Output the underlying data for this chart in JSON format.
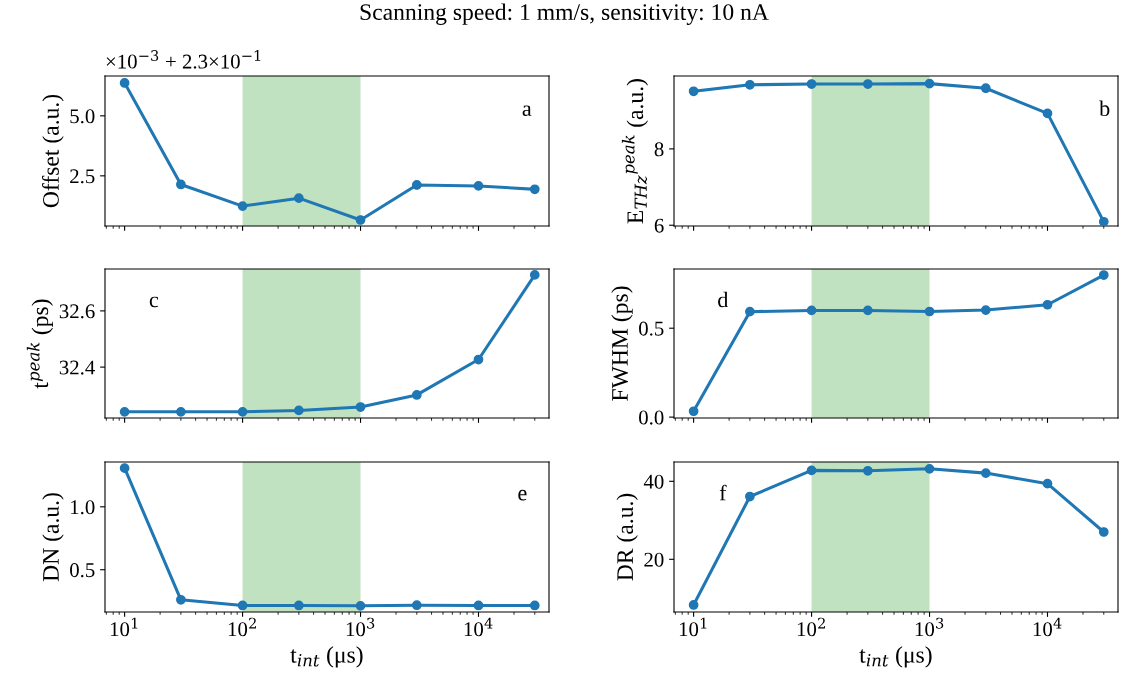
{
  "chart_data": [
    {
      "type": "line",
      "title": "Scanning speed: 1 mm/s, sensitivity: 10 nA",
      "ylabel": "Offset (a.u.)",
      "annotations": [
        "a",
        "×10$^{−3}$ + 2.3×10$^{−1}$"
      ],
      "x": [
        10,
        30,
        100,
        300,
        1000,
        3000,
        10000,
        30000
      ],
      "log": "x",
      "xlim": [
        6.82,
        39600
      ],
      "xticks": [
        10,
        100,
        1000,
        10000
      ],
      "ylim": [
        0.41,
        6.66
      ],
      "yticks": [
        2.5,
        {
          "value": 5,
          "label": "5.0"
        }
      ],
      "tick_labels": "y",
      "marker": "circle",
      "bands": [
        {
          "axis": "x",
          "from": 100,
          "to": 1000,
          "color": "#c0e2c0"
        }
      ],
      "series": [
        {
          "color": "#1f77b4",
          "values": [
            6.37,
            2.14,
            1.24,
            1.57,
            0.66,
            2.12,
            2.08,
            1.94
          ]
        }
      ]
    },
    {
      "type": "line",
      "ylabel": "E$_{THz}$$^{peak}$ (a.u.)",
      "annotations": [
        "b"
      ],
      "x": [
        10,
        30,
        100,
        300,
        1000,
        3000,
        10000,
        30000
      ],
      "log": "x",
      "xlim": [
        6.82,
        39600
      ],
      "xticks": [
        10,
        100,
        1000,
        10000
      ],
      "ylim": [
        5.98,
        9.91
      ],
      "yticks": [
        6,
        8
      ],
      "tick_labels": "y",
      "marker": "circle",
      "bands": [
        {
          "axis": "x",
          "from": 100,
          "to": 1000,
          "color": "#c0e2c0"
        }
      ],
      "series": [
        {
          "color": "#1f77b4",
          "values": [
            9.51,
            9.68,
            9.7,
            9.7,
            9.71,
            9.59,
            8.93,
            6.09
          ]
        }
      ]
    },
    {
      "type": "line",
      "ylabel": "t$^{peak}$ (ps)",
      "annotations": [
        "c"
      ],
      "x": [
        10,
        30,
        100,
        300,
        1000,
        3000,
        10000,
        30000
      ],
      "log": "x",
      "xlim": [
        6.82,
        39600
      ],
      "xticks": [
        10,
        100,
        1000,
        10000
      ],
      "ylim": [
        32.219,
        32.749
      ],
      "yticks": [
        32.4,
        32.6
      ],
      "tick_labels": "y",
      "marker": "circle",
      "bands": [
        {
          "axis": "x",
          "from": 100,
          "to": 1000,
          "color": "#c0e2c0"
        }
      ],
      "series": [
        {
          "color": "#1f77b4",
          "values": [
            32.241,
            32.241,
            32.241,
            32.246,
            32.258,
            32.301,
            32.427,
            32.728
          ]
        }
      ]
    },
    {
      "type": "line",
      "ylabel": "FWHM (ps)",
      "annotations": [
        "d"
      ],
      "x": [
        10,
        30,
        100,
        300,
        1000,
        3000,
        10000,
        30000
      ],
      "log": "x",
      "xlim": [
        6.82,
        39600
      ],
      "xticks": [
        10,
        100,
        1000,
        10000
      ],
      "ylim": [
        -0.005,
        0.833
      ],
      "yticks": [
        {
          "value": 0,
          "label": "0.0"
        },
        0.5
      ],
      "tick_labels": "y",
      "marker": "circle",
      "bands": [
        {
          "axis": "x",
          "from": 100,
          "to": 1000,
          "color": "#c0e2c0"
        }
      ],
      "series": [
        {
          "color": "#1f77b4",
          "values": [
            0.033,
            0.593,
            0.6,
            0.6,
            0.594,
            0.602,
            0.632,
            0.799
          ]
        }
      ]
    },
    {
      "type": "line",
      "xlabel": "t$_{int}$ (μs)",
      "ylabel": "DN (a.u.)",
      "annotations": [
        "e"
      ],
      "x": [
        10,
        30,
        100,
        300,
        1000,
        3000,
        10000,
        30000
      ],
      "log": "x",
      "xlim": [
        6.82,
        39600
      ],
      "xticks": [
        {
          "value": 10,
          "label": "10$^{1}$"
        },
        {
          "value": 100,
          "label": "10$^{2}$"
        },
        {
          "value": 1000,
          "label": "10$^{3}$"
        },
        {
          "value": 10000,
          "label": "10$^{4}$"
        }
      ],
      "ylim": [
        0.164,
        1.356
      ],
      "yticks": [
        0.5,
        {
          "value": 1,
          "label": "1.0"
        }
      ],
      "marker": "circle",
      "bands": [
        {
          "axis": "x",
          "from": 100,
          "to": 1000,
          "color": "#c0e2c0"
        }
      ],
      "series": [
        {
          "color": "#1f77b4",
          "values": [
            1.307,
            0.261,
            0.216,
            0.216,
            0.213,
            0.218,
            0.216,
            0.216
          ]
        }
      ]
    },
    {
      "type": "line",
      "xlabel": "t$_{int}$ (μs)",
      "ylabel": "DR (a.u.)",
      "annotations": [
        "f"
      ],
      "x": [
        10,
        30,
        100,
        300,
        1000,
        3000,
        10000,
        30000
      ],
      "log": "x",
      "xlim": [
        6.82,
        39600
      ],
      "xticks": [
        {
          "value": 10,
          "label": "10$^{1}$"
        },
        {
          "value": 100,
          "label": "10$^{2}$"
        },
        {
          "value": 1000,
          "label": "10$^{3}$"
        },
        {
          "value": 10000,
          "label": "10$^{4}$"
        }
      ],
      "ylim": [
        6.49,
        44.95
      ],
      "yticks": [
        20,
        40
      ],
      "marker": "circle",
      "bands": [
        {
          "axis": "x",
          "from": 100,
          "to": 1000,
          "color": "#c0e2c0"
        }
      ],
      "series": [
        {
          "color": "#1f77b4",
          "values": [
            8.3,
            36.1,
            42.8,
            42.7,
            43.2,
            42.1,
            39.4,
            27.0
          ]
        }
      ]
    }
  ]
}
